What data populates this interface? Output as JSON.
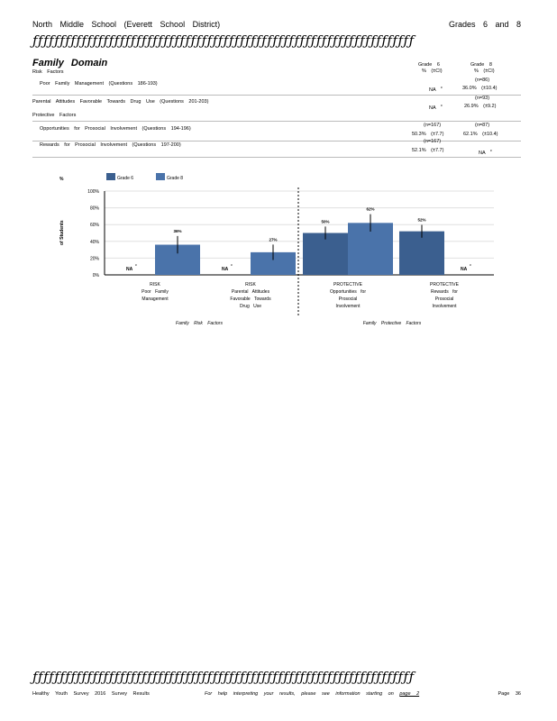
{
  "header": {
    "school": "North Middle School (Everett School District)",
    "grades": "Grades 6 and 8",
    "deco": "ƒƒƒƒƒƒƒƒƒƒƒƒƒƒƒƒƒƒƒƒƒƒƒƒƒƒƒƒƒƒƒƒƒƒƒƒƒƒƒƒƒƒƒƒƒƒƒƒƒƒƒƒƒƒƒƒƒƒƒƒƒƒƒƒƒƒƒƒƒƒ"
  },
  "domain": {
    "title": "Family Domain",
    "risk_heading": "Risk Factors",
    "protective_heading": "Protective Factors",
    "col_grade6": "Grade 6",
    "col_grade8": "Grade 8",
    "col_sub6": "% (±CI)",
    "col_sub8": "% (±CI)"
  },
  "rows": [
    {
      "label": "Poor Family Management (Questions 186-193)",
      "n6": "",
      "n8": "(n=86)",
      "v6": "NA",
      "v6_note": "c",
      "v8": "36.0% (±10.4)"
    },
    {
      "label": "Parental Attitudes Favorable Towards Drug Use (Questions 201-203)",
      "n6": "",
      "n8": "(n=93)",
      "v6": "NA",
      "v6_note": "c",
      "v8": "26.9% (±9.2)"
    },
    {
      "label": "Opportunities for Prosocial Involvement (Questions 194-196)",
      "n6": "(n=167)",
      "n8": "(n=87)",
      "v6": "50.3% (±7.7)",
      "v6_note": "",
      "v8": "62.1% (±10.4)"
    },
    {
      "label": "Rewards for Prosocial Involvement (Questions 197-200)",
      "n6": "(n=167)",
      "n8": "",
      "v6": "52.1% (±7.7)",
      "v6_note": "",
      "v8": "NA",
      "v8_note": "c"
    }
  ],
  "chart_data": {
    "type": "bar",
    "ylabel_top": "%",
    "ylabel": "of Students",
    "ylim": [
      0,
      100
    ],
    "yticks": [
      "0%",
      "20%",
      "40%",
      "60%",
      "80%",
      "100%"
    ],
    "legend": [
      "Grade 6",
      "Grade 8"
    ],
    "colors": {
      "grade6": "#3b5f8f",
      "grade8": "#4a73aa"
    },
    "categories": [
      [
        "RISK",
        "Poor Family",
        "Management"
      ],
      [
        "RISK",
        "Parental Attitudes",
        "Favorable Towards",
        "Drug Use"
      ],
      [
        "PROTECTIVE",
        "Opportunities for",
        "Prosocial",
        "Involvement"
      ],
      [
        "PROTECTIVE",
        "Rewards for",
        "Prosocial",
        "Involvement"
      ]
    ],
    "series": [
      {
        "name": "Grade 6",
        "values": [
          null,
          null,
          50,
          52
        ],
        "ci": [
          null,
          null,
          7.7,
          7.7
        ],
        "labels": [
          "NA",
          "NA",
          "50%",
          "52%"
        ]
      },
      {
        "name": "Grade 8",
        "values": [
          36,
          27,
          62,
          null
        ],
        "ci": [
          10.4,
          9.2,
          10.4,
          null
        ],
        "labels": [
          "36%",
          "27%",
          "62%",
          "NA"
        ]
      }
    ],
    "na_note": "c",
    "group_labels": [
      "Family Risk Factors",
      "Family Protective Factors"
    ]
  },
  "footer": {
    "deco": "ƒƒƒƒƒƒƒƒƒƒƒƒƒƒƒƒƒƒƒƒƒƒƒƒƒƒƒƒƒƒƒƒƒƒƒƒƒƒƒƒƒƒƒƒƒƒƒƒƒƒƒƒƒƒƒƒƒƒƒƒƒƒƒƒƒƒƒƒƒƒ",
    "survey": "Healthy Youth Survey 2016 Survey Results",
    "help": "For help interpreting your results, please see information starting on",
    "help_link": "page 2",
    "page": "Page 36"
  }
}
